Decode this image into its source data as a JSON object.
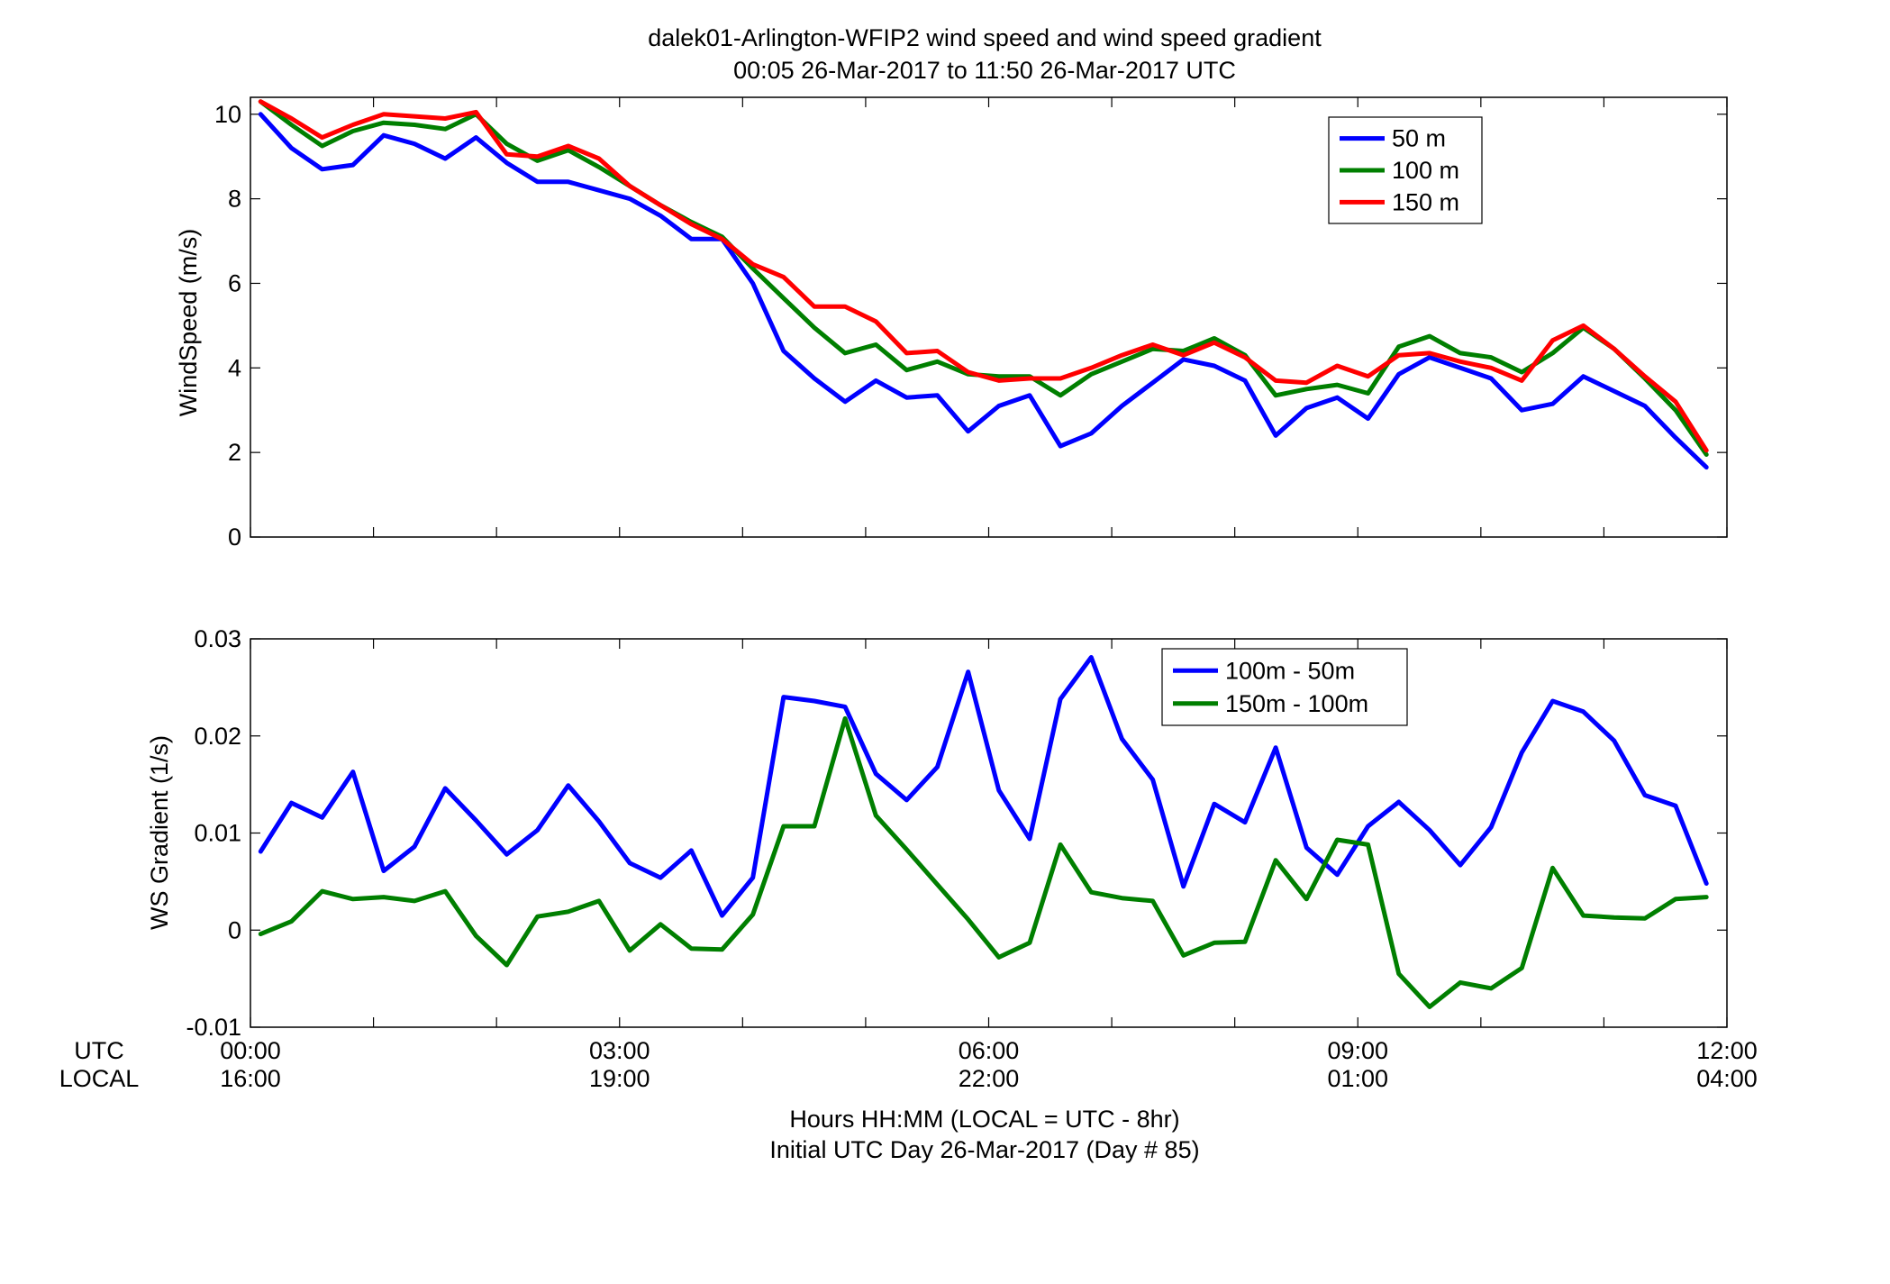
{
  "title_line1": "dalek01-Arlington-WFIP2  wind speed and wind speed gradient",
  "title_line2": "00:05 26-Mar-2017 to 11:50 26-Mar-2017  UTC",
  "xaxis": {
    "row_label_utc": "UTC",
    "row_label_local": "LOCAL",
    "ticks_utc": [
      "00:00",
      "03:00",
      "06:00",
      "09:00",
      "12:00"
    ],
    "ticks_local": [
      "16:00",
      "19:00",
      "22:00",
      "01:00",
      "04:00"
    ],
    "label_line1": "Hours HH:MM  (LOCAL = UTC - 8hr)",
    "label_line2": "Initial UTC Day 26-Mar-2017 (Day # 85)"
  },
  "chart_data": [
    {
      "type": "line",
      "ylabel": "WindSpeed (m/s)",
      "xlim": [
        0,
        12
      ],
      "ylim": [
        0,
        10.4
      ],
      "yticks": [
        0,
        2,
        4,
        6,
        8,
        10
      ],
      "legend_position": "top-right",
      "x": [
        0.083,
        0.333,
        0.583,
        0.833,
        1.083,
        1.333,
        1.583,
        1.833,
        2.083,
        2.333,
        2.583,
        2.833,
        3.083,
        3.333,
        3.583,
        3.833,
        4.083,
        4.333,
        4.583,
        4.833,
        5.083,
        5.333,
        5.583,
        5.833,
        6.083,
        6.333,
        6.583,
        6.833,
        7.083,
        7.333,
        7.583,
        7.833,
        8.083,
        8.333,
        8.583,
        8.833,
        9.083,
        9.333,
        9.583,
        9.833,
        10.083,
        10.333,
        10.583,
        10.833,
        11.083,
        11.333,
        11.583,
        11.833
      ],
      "series": [
        {
          "name": "50 m",
          "color": "#0000ff",
          "values": [
            10.0,
            9.2,
            8.7,
            8.8,
            9.5,
            9.3,
            8.95,
            9.45,
            8.85,
            8.4,
            8.4,
            8.2,
            8.0,
            7.6,
            7.05,
            7.05,
            6.0,
            4.4,
            3.75,
            3.2,
            3.7,
            3.3,
            3.35,
            2.5,
            3.1,
            3.35,
            2.15,
            2.45,
            3.1,
            3.65,
            4.2,
            4.05,
            3.7,
            2.4,
            3.05,
            3.3,
            2.8,
            3.85,
            4.25,
            4.0,
            3.75,
            3.0,
            3.15,
            3.8,
            3.45,
            3.1,
            2.35,
            1.65
          ]
        },
        {
          "name": "100 m",
          "color": "#007f00",
          "values": [
            10.3,
            9.75,
            9.25,
            9.6,
            9.8,
            9.75,
            9.65,
            10.0,
            9.3,
            8.9,
            9.15,
            8.75,
            8.3,
            7.85,
            7.45,
            7.1,
            6.35,
            5.65,
            4.95,
            4.35,
            4.55,
            3.95,
            4.15,
            3.85,
            3.8,
            3.8,
            3.35,
            3.85,
            4.15,
            4.45,
            4.4,
            4.7,
            4.3,
            3.35,
            3.5,
            3.6,
            3.4,
            4.5,
            4.75,
            4.35,
            4.25,
            3.9,
            4.35,
            4.95,
            4.45,
            3.75,
            3.0,
            1.95
          ]
        },
        {
          "name": "150 m",
          "color": "#ff0000",
          "values": [
            10.3,
            9.9,
            9.45,
            9.75,
            10.0,
            9.95,
            9.9,
            10.05,
            9.05,
            9.0,
            9.25,
            8.95,
            8.3,
            7.85,
            7.4,
            7.05,
            6.45,
            6.15,
            5.45,
            5.45,
            5.1,
            4.35,
            4.4,
            3.9,
            3.7,
            3.75,
            3.75,
            4.0,
            4.3,
            4.55,
            4.3,
            4.6,
            4.25,
            3.7,
            3.65,
            4.05,
            3.8,
            4.3,
            4.35,
            4.15,
            4.0,
            3.7,
            4.65,
            5.0,
            4.45,
            3.8,
            3.2,
            2.05
          ]
        }
      ]
    },
    {
      "type": "line",
      "ylabel": "WS Gradient (1/s)",
      "xlim": [
        0,
        12
      ],
      "ylim": [
        -0.01,
        0.03
      ],
      "yticks": [
        -0.01,
        0,
        0.01,
        0.02,
        0.03
      ],
      "ytick_labels": [
        "-0.01",
        "0",
        "0.01",
        "0.02",
        "0.03"
      ],
      "legend_position": "top-right",
      "x": [
        0.083,
        0.333,
        0.583,
        0.833,
        1.083,
        1.333,
        1.583,
        1.833,
        2.083,
        2.333,
        2.583,
        2.833,
        3.083,
        3.333,
        3.583,
        3.833,
        4.083,
        4.333,
        4.583,
        4.833,
        5.083,
        5.333,
        5.583,
        5.833,
        6.083,
        6.333,
        6.583,
        6.833,
        7.083,
        7.333,
        7.583,
        7.833,
        8.083,
        8.333,
        8.583,
        8.833,
        9.083,
        9.333,
        9.583,
        9.833,
        10.083,
        10.333,
        10.583,
        10.833,
        11.083,
        11.333,
        11.583,
        11.833
      ],
      "series": [
        {
          "name": "100m - 50m",
          "color": "#0000ff",
          "values": [
            0.0081,
            0.0131,
            0.0116,
            0.0163,
            0.0061,
            0.0086,
            0.0146,
            0.0113,
            0.0078,
            0.0103,
            0.0149,
            0.0112,
            0.0069,
            0.0054,
            0.0082,
            0.0015,
            0.0054,
            0.024,
            0.0236,
            0.023,
            0.0161,
            0.0134,
            0.0168,
            0.0266,
            0.0144,
            0.0094,
            0.0238,
            0.0281,
            0.0197,
            0.0155,
            0.0045,
            0.013,
            0.0111,
            0.0188,
            0.0085,
            0.0057,
            0.0107,
            0.0132,
            0.0103,
            0.0067,
            0.0106,
            0.0183,
            0.0236,
            0.0225,
            0.0195,
            0.0139,
            0.0128,
            0.0048
          ]
        },
        {
          "name": "150m - 100m",
          "color": "#007f00",
          "values": [
            -0.0004,
            0.0009,
            0.004,
            0.0032,
            0.0034,
            0.003,
            0.004,
            -0.0006,
            -0.0036,
            0.0014,
            0.0019,
            0.003,
            -0.0021,
            0.0006,
            -0.0019,
            -0.002,
            0.0016,
            0.0107,
            0.0107,
            0.0218,
            0.0118,
            0.0083,
            0.0047,
            0.0011,
            -0.0028,
            -0.0013,
            0.0088,
            0.0039,
            0.0033,
            0.003,
            -0.0026,
            -0.0013,
            -0.0012,
            0.0072,
            0.0032,
            0.0093,
            0.0088,
            -0.0045,
            -0.0079,
            -0.0054,
            -0.006,
            -0.0039,
            0.0064,
            0.0015,
            0.0013,
            0.0012,
            0.0032,
            0.0034
          ]
        }
      ]
    }
  ]
}
